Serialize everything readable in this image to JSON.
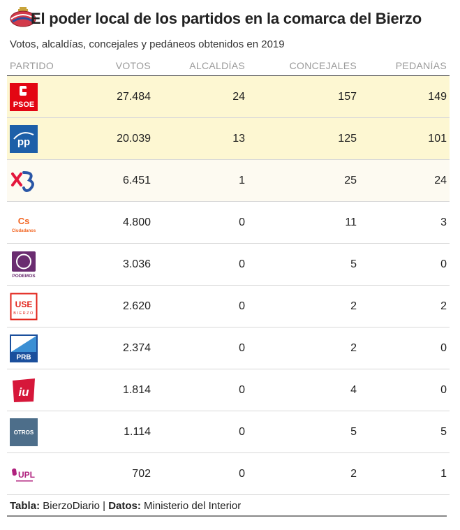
{
  "title": "El poder local de los partidos en la comarca del Bierzo",
  "subtitle": "Votos, alcaldías, concejales y pedáneos obtenidos en 2019",
  "footer": {
    "tabla_label": "Tabla:",
    "tabla_value": "BierzoDiario",
    "separator": "|",
    "datos_label": "Datos:",
    "datos_value": "Ministerio del Interior"
  },
  "chart_data": {
    "type": "table",
    "columns": [
      "PARTIDO",
      "VOTOS",
      "ALCALDÍAS",
      "CONCEJALES",
      "PEDANÍAS"
    ],
    "rows": [
      {
        "partido": "PSOE",
        "votos": "27.484",
        "alcaldias": "24",
        "concejales": "157",
        "pedanias": "149"
      },
      {
        "partido": "PP",
        "votos": "20.039",
        "alcaldias": "13",
        "concejales": "125",
        "pedanias": "101"
      },
      {
        "partido": "CB",
        "votos": "6.451",
        "alcaldias": "1",
        "concejales": "25",
        "pedanias": "24"
      },
      {
        "partido": "Ciudadanos",
        "votos": "4.800",
        "alcaldias": "0",
        "concejales": "11",
        "pedanias": "3"
      },
      {
        "partido": "PODEMOS",
        "votos": "3.036",
        "alcaldias": "0",
        "concejales": "5",
        "pedanias": "0"
      },
      {
        "partido": "USE BIERZO",
        "votos": "2.620",
        "alcaldias": "0",
        "concejales": "2",
        "pedanias": "2"
      },
      {
        "partido": "PRB",
        "votos": "2.374",
        "alcaldias": "0",
        "concejales": "2",
        "pedanias": "0"
      },
      {
        "partido": "IU",
        "votos": "1.814",
        "alcaldias": "0",
        "concejales": "4",
        "pedanias": "0"
      },
      {
        "partido": "OTROS",
        "votos": "1.114",
        "alcaldias": "0",
        "concejales": "5",
        "pedanias": "5"
      },
      {
        "partido": "UPL",
        "votos": "702",
        "alcaldias": "0",
        "concejales": "2",
        "pedanias": "1"
      }
    ]
  },
  "colors": {
    "highlight_strong": "#fdf7d2",
    "highlight_light": "#fdfaf1",
    "psoe": "#e30613",
    "pp": "#1d5fa8",
    "cb": "#e4173d",
    "cs": "#f26522",
    "podemos": "#6a2c70",
    "use": "#e2231a",
    "prb": "#1b4f9c",
    "iu": "#d6173a",
    "otros": "#4d6e8a",
    "upl": "#b0227e"
  }
}
